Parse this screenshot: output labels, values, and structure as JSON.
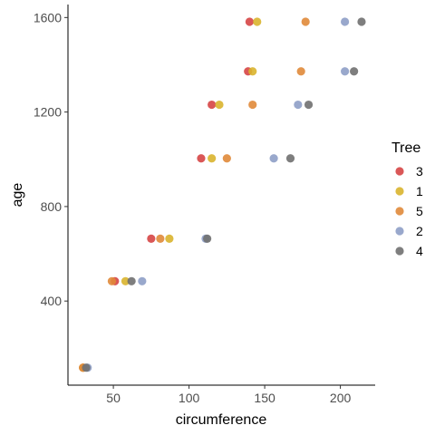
{
  "chart_data": {
    "type": "scatter",
    "xlabel": "circumference",
    "ylabel": "age",
    "xlim": [
      20,
      223
    ],
    "ylim": [
      44,
      1655
    ],
    "x_ticks": [
      50,
      100,
      150,
      200
    ],
    "y_ticks": [
      400,
      800,
      1200,
      1600
    ],
    "grid": false,
    "legend": {
      "title": "Tree",
      "position": "right"
    },
    "series": [
      {
        "name": "3",
        "color": "#D64545",
        "points": [
          [
            30,
            118
          ],
          [
            51,
            484
          ],
          [
            75,
            664
          ],
          [
            108,
            1004
          ],
          [
            115,
            1231
          ],
          [
            139,
            1372
          ],
          [
            140,
            1582
          ]
        ]
      },
      {
        "name": "1",
        "color": "#D9B42E",
        "points": [
          [
            30,
            118
          ],
          [
            58,
            484
          ],
          [
            87,
            664
          ],
          [
            115,
            1004
          ],
          [
            120,
            1231
          ],
          [
            142,
            1372
          ],
          [
            145,
            1582
          ]
        ]
      },
      {
        "name": "5",
        "color": "#E08A3A",
        "points": [
          [
            30,
            118
          ],
          [
            49,
            484
          ],
          [
            81,
            664
          ],
          [
            125,
            1004
          ],
          [
            142,
            1231
          ],
          [
            174,
            1372
          ],
          [
            177,
            1582
          ]
        ]
      },
      {
        "name": "2",
        "color": "#8E9FC6",
        "points": [
          [
            33,
            118
          ],
          [
            69,
            484
          ],
          [
            111,
            664
          ],
          [
            156,
            1004
          ],
          [
            172,
            1231
          ],
          [
            203,
            1372
          ],
          [
            203,
            1582
          ]
        ]
      },
      {
        "name": "4",
        "color": "#707070",
        "points": [
          [
            32,
            118
          ],
          [
            62,
            484
          ],
          [
            112,
            664
          ],
          [
            167,
            1004
          ],
          [
            179,
            1231
          ],
          [
            209,
            1372
          ],
          [
            214,
            1582
          ]
        ]
      }
    ]
  }
}
